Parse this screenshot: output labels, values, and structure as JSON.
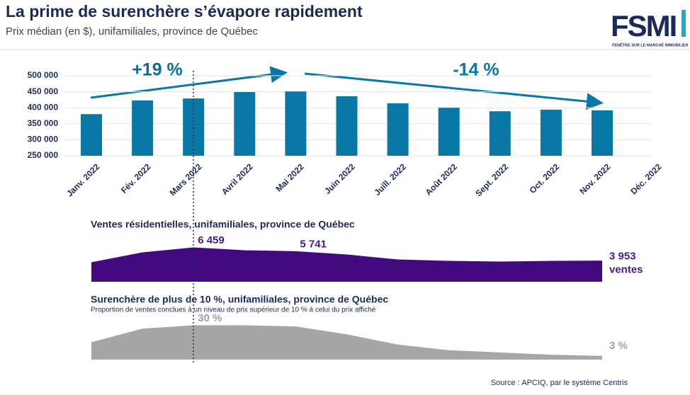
{
  "header": {
    "title": "La prime de surenchère s’évapore rapidement",
    "subtitle": "Prix médian (en $), unifamiliales, province de Québec"
  },
  "logo": {
    "name": "FSMI",
    "tagline": "FENÊTRE SUR LE MARCHÉ IMMOBILIER"
  },
  "chart_data": [
    {
      "type": "bar",
      "categories": [
        "Janv. 2022",
        "Fév. 2022",
        "Mars 2022",
        "Avril 2022",
        "Mai 2022",
        "Juin 2022",
        "Juill. 2022",
        "Août 2022",
        "Sept. 2022",
        "Oct. 2022",
        "Nov. 2022",
        "Déc. 2022"
      ],
      "values": [
        380000,
        423000,
        429000,
        449000,
        451000,
        436000,
        414000,
        400000,
        389000,
        394000,
        392000,
        null
      ],
      "color": "#0a78a6",
      "ylim": [
        250000,
        500000
      ],
      "yticks": [
        {
          "value": 250000,
          "label": "250 000"
        },
        {
          "value": 300000,
          "label": "300 000"
        },
        {
          "value": 350000,
          "label": "350 000"
        },
        {
          "value": 400000,
          "label": "400 000"
        },
        {
          "value": 450000,
          "label": "450 000"
        },
        {
          "value": 500000,
          "label": "500 000"
        }
      ],
      "annotations": [
        "+19 %",
        "-14 %"
      ]
    },
    {
      "type": "area",
      "title": "Ventes résidentielles, unifamiliales, province de Québec",
      "values": [
        3630,
        5520,
        6459,
        5920,
        5741,
        5110,
        4170,
        3900,
        3770,
        3900,
        3953
      ],
      "value_labels": [
        null,
        null,
        "6 459",
        null,
        "5 741",
        null,
        null,
        null,
        null,
        null,
        "3 953"
      ],
      "unit": "ventes",
      "color": "#430a80"
    },
    {
      "type": "area",
      "title": "Surenchère de plus de 10 %, unifamiliales, province de Québec",
      "subtitle": "Proportion de ventes conclues à un niveau de prix supérieur de 10 % à celui du prix affiché",
      "values": [
        15,
        27,
        30,
        30,
        29,
        22,
        13,
        8,
        6,
        4,
        3
      ],
      "value_labels": [
        null,
        null,
        "30 %",
        null,
        null,
        null,
        null,
        null,
        null,
        null,
        "3 %"
      ],
      "color": "#a6a6a6"
    }
  ],
  "source": "Source : APCIQ, par le système Centris"
}
